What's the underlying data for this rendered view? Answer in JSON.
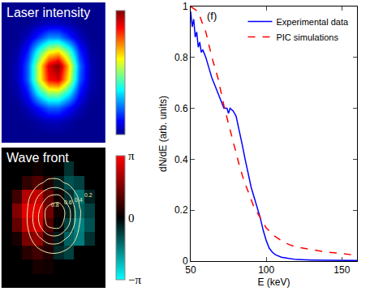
{
  "chart_data": [
    {
      "type": "heatmap",
      "title": "Laser intensity",
      "colorbar_range": [
        0,
        1
      ],
      "z": [
        [
          0,
          0,
          0,
          0,
          0,
          0,
          0,
          0,
          0,
          0
        ],
        [
          0,
          0,
          0,
          0.02,
          0.04,
          0.04,
          0.02,
          0,
          0,
          0
        ],
        [
          0,
          0,
          0.04,
          0.12,
          0.2,
          0.2,
          0.12,
          0.04,
          0,
          0
        ],
        [
          0,
          0.02,
          0.12,
          0.35,
          0.5,
          0.5,
          0.35,
          0.12,
          0.02,
          0
        ],
        [
          0,
          0.04,
          0.2,
          0.55,
          0.85,
          0.9,
          0.6,
          0.2,
          0.04,
          0
        ],
        [
          0,
          0.04,
          0.2,
          0.55,
          0.9,
          1,
          0.65,
          0.22,
          0.04,
          0
        ],
        [
          0,
          0.02,
          0.14,
          0.4,
          0.6,
          0.65,
          0.45,
          0.15,
          0.02,
          0
        ],
        [
          0,
          0,
          0.05,
          0.15,
          0.25,
          0.25,
          0.15,
          0.05,
          0,
          0
        ],
        [
          0,
          0,
          0,
          0.03,
          0.05,
          0.05,
          0.03,
          0,
          0,
          0
        ],
        [
          0,
          0,
          0,
          0,
          0,
          0,
          0,
          0,
          0,
          0
        ]
      ]
    },
    {
      "type": "heatmap",
      "title": "Wave front",
      "colorbar_range": [
        -3.14159,
        3.14159
      ],
      "colorbar_ticks": [
        {
          "value": -3.14159,
          "label": "−π"
        },
        0,
        {
          "value": 3.14159,
          "label": "π"
        }
      ],
      "z": [
        [
          null,
          null,
          null,
          null,
          null,
          null,
          null,
          null,
          null,
          null
        ],
        [
          null,
          null,
          null,
          0.3,
          0.2,
          null,
          null,
          null,
          null,
          null
        ],
        [
          null,
          null,
          0.5,
          0.8,
          0.4,
          -0.5,
          -0.8,
          null,
          null,
          null
        ],
        [
          null,
          0.3,
          1.5,
          1.8,
          0.6,
          -0.3,
          -1.2,
          -1.5,
          -0.6,
          null
        ],
        [
          null,
          1.2,
          2.4,
          2.6,
          1.0,
          0.0,
          -0.8,
          -1.6,
          -1.0,
          null
        ],
        [
          null,
          1.6,
          2.8,
          2.8,
          1.4,
          0.2,
          -0.4,
          -1.2,
          -0.8,
          null
        ],
        [
          null,
          0.8,
          2.2,
          2.4,
          1.2,
          0.2,
          -0.6,
          -1.4,
          -0.4,
          null
        ],
        [
          null,
          null,
          0.6,
          1.0,
          0.4,
          -0.4,
          -1.0,
          -0.8,
          null,
          null
        ],
        [
          null,
          null,
          null,
          0.2,
          null,
          null,
          -0.6,
          null,
          null,
          null
        ],
        [
          null,
          null,
          null,
          null,
          null,
          null,
          null,
          null,
          null,
          null
        ]
      ],
      "contour_levels": [
        0.2,
        0.4,
        0.6,
        0.8
      ],
      "contour_labels": [
        {
          "value": 0.8,
          "x": 4.7,
          "y": 5.4
        },
        {
          "value": 0.6,
          "x": 5.9,
          "y": 5.6
        },
        {
          "value": 0.4,
          "x": 6.9,
          "y": 5.8
        },
        {
          "value": 0.2,
          "x": 7.9,
          "y": 6.1
        }
      ]
    },
    {
      "type": "line",
      "panel_label": "(f)",
      "x_label": "E (keV)",
      "y_label": "dN/dE (arb. units)",
      "xlim": [
        50,
        160
      ],
      "xticks": [
        50,
        100,
        150
      ],
      "ylim": [
        0,
        1
      ],
      "yticks": [
        0,
        0.2,
        0.4,
        0.6,
        0.8,
        1
      ],
      "grid": false,
      "legend": "top right",
      "series": [
        {
          "name": "Experimental data",
          "color": "#0000ff",
          "line_style": "solid",
          "x": [
            50,
            51,
            52,
            53,
            54,
            55,
            56,
            57,
            58,
            60,
            62,
            64,
            66,
            68,
            70,
            72,
            74,
            75,
            76,
            78,
            80,
            82,
            84,
            86,
            88,
            90,
            92,
            94,
            96,
            98,
            100,
            102,
            104,
            106,
            110,
            115,
            120,
            130,
            140,
            150,
            160
          ],
          "values": [
            0.98,
            0.92,
            0.95,
            0.88,
            0.9,
            0.84,
            0.86,
            0.82,
            0.83,
            0.8,
            0.76,
            0.72,
            0.69,
            0.66,
            0.63,
            0.6,
            0.6,
            0.58,
            0.6,
            0.59,
            0.57,
            0.52,
            0.46,
            0.4,
            0.34,
            0.29,
            0.25,
            0.21,
            0.17,
            0.12,
            0.08,
            0.05,
            0.035,
            0.025,
            0.015,
            0.01,
            0.006,
            0.004,
            0.003,
            0.002,
            0.002
          ]
        },
        {
          "name": "PIC simulations",
          "color": "#ff0000",
          "line_style": "dash",
          "x": [
            50,
            55,
            58,
            60,
            62,
            65,
            68,
            70,
            72,
            75,
            78,
            80,
            82,
            85,
            88,
            90,
            92,
            95,
            98,
            100,
            105,
            110,
            115,
            120,
            130,
            140,
            150,
            160
          ],
          "values": [
            1.0,
            0.98,
            0.93,
            0.9,
            0.85,
            0.78,
            0.72,
            0.66,
            0.61,
            0.54,
            0.47,
            0.43,
            0.38,
            0.32,
            0.27,
            0.24,
            0.21,
            0.18,
            0.15,
            0.13,
            0.1,
            0.08,
            0.065,
            0.055,
            0.045,
            0.035,
            0.03,
            0.022
          ]
        }
      ]
    }
  ]
}
